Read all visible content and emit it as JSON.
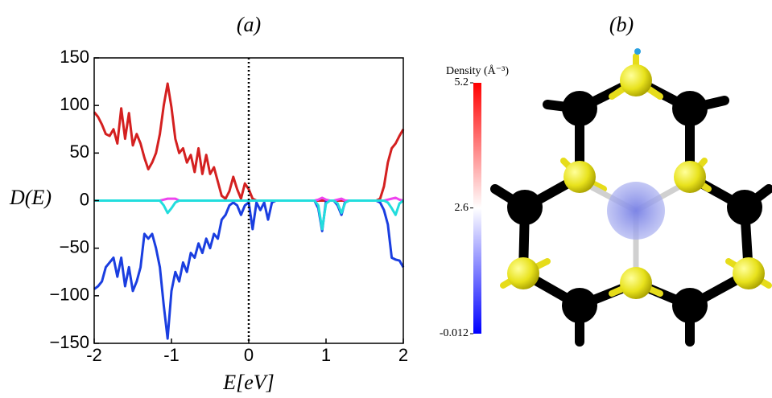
{
  "chart_data": {
    "type": "line",
    "title": "(a)",
    "ylabel": "D(E)",
    "xlabel": "E[eV]",
    "xlim": [
      -2,
      2
    ],
    "ylim": [
      -150,
      150
    ],
    "xticks": [
      -2,
      -1,
      0,
      1,
      2
    ],
    "yticks": [
      -150,
      -100,
      -50,
      0,
      50,
      100,
      150
    ],
    "vline": 0,
    "x": [
      -2,
      -1.95,
      -1.9,
      -1.85,
      -1.8,
      -1.75,
      -1.7,
      -1.65,
      -1.6,
      -1.55,
      -1.5,
      -1.45,
      -1.4,
      -1.35,
      -1.3,
      -1.25,
      -1.2,
      -1.15,
      -1.1,
      -1.05,
      -1,
      -0.95,
      -0.9,
      -0.85,
      -0.8,
      -0.75,
      -0.7,
      -0.65,
      -0.6,
      -0.55,
      -0.5,
      -0.45,
      -0.4,
      -0.35,
      -0.3,
      -0.25,
      -0.2,
      -0.15,
      -0.1,
      -0.05,
      0,
      0.05,
      0.1,
      0.15,
      0.2,
      0.25,
      0.3,
      0.35,
      0.4,
      0.45,
      0.5,
      0.55,
      0.6,
      0.65,
      0.7,
      0.75,
      0.8,
      0.85,
      0.9,
      0.95,
      1,
      1.05,
      1.1,
      1.15,
      1.2,
      1.25,
      1.3,
      1.35,
      1.4,
      1.45,
      1.5,
      1.55,
      1.6,
      1.65,
      1.7,
      1.75,
      1.8,
      1.85,
      1.9,
      1.95,
      2
    ],
    "series": [
      {
        "color": "#d42020",
        "values": [
          93,
          88,
          80,
          70,
          68,
          75,
          60,
          97,
          65,
          92,
          58,
          70,
          60,
          45,
          33,
          40,
          50,
          70,
          100,
          123,
          98,
          65,
          50,
          55,
          40,
          48,
          30,
          55,
          28,
          48,
          28,
          35,
          20,
          5,
          2,
          10,
          25,
          12,
          2,
          18,
          12,
          2,
          0,
          0,
          0,
          0,
          0,
          0,
          0,
          0,
          0,
          0,
          0,
          0,
          0,
          0,
          0,
          0,
          0,
          0,
          0,
          0,
          0,
          0,
          0,
          0,
          0,
          0,
          0,
          0,
          0,
          0,
          0,
          0,
          2,
          15,
          40,
          55,
          60,
          68,
          75
        ]
      },
      {
        "color": "#1a3ee0",
        "values": [
          -93,
          -90,
          -85,
          -70,
          -65,
          -60,
          -80,
          -60,
          -90,
          -70,
          -95,
          -85,
          -70,
          -35,
          -40,
          -35,
          -50,
          -70,
          -110,
          -145,
          -95,
          -75,
          -85,
          -65,
          -75,
          -55,
          -60,
          -45,
          -55,
          -40,
          -50,
          -35,
          -40,
          -20,
          -15,
          -5,
          -2,
          -5,
          -15,
          -5,
          -2,
          -30,
          -2,
          -10,
          -2,
          -20,
          -2,
          0,
          0,
          0,
          0,
          0,
          0,
          0,
          0,
          0,
          0,
          0,
          -8,
          -32,
          0,
          0,
          0,
          -5,
          -15,
          0,
          0,
          0,
          0,
          0,
          0,
          0,
          0,
          0,
          -2,
          -10,
          -25,
          -60,
          -62,
          -63,
          -70
        ]
      },
      {
        "color": "#ee44ee",
        "values": [
          0,
          0,
          0,
          0,
          0,
          0,
          0,
          0,
          0,
          0,
          0,
          0,
          0,
          0,
          0,
          0,
          0,
          0,
          1,
          2,
          2,
          2,
          0,
          0,
          0,
          0,
          0,
          0,
          0,
          0,
          0,
          0,
          0,
          0,
          0,
          0,
          0,
          0,
          0,
          0,
          0,
          0,
          0,
          0,
          0,
          0,
          0,
          0,
          0,
          0,
          0,
          0,
          0,
          0,
          0,
          0,
          0,
          0,
          1,
          3,
          1,
          0,
          0,
          1,
          2,
          0,
          0,
          0,
          0,
          0,
          0,
          0,
          0,
          0,
          0,
          0,
          1,
          2,
          3,
          1,
          0
        ]
      },
      {
        "color": "#22dddd",
        "values": [
          0,
          0,
          0,
          0,
          0,
          0,
          0,
          0,
          0,
          0,
          0,
          0,
          0,
          0,
          0,
          0,
          0,
          0,
          -5,
          -13,
          -8,
          -2,
          0,
          0,
          0,
          0,
          0,
          0,
          0,
          0,
          0,
          0,
          0,
          0,
          0,
          0,
          0,
          0,
          0,
          0,
          0,
          0,
          0,
          0,
          0,
          0,
          0,
          0,
          0,
          0,
          0,
          0,
          0,
          0,
          0,
          0,
          0,
          0,
          -5,
          -30,
          -3,
          0,
          0,
          -3,
          -13,
          -2,
          0,
          0,
          0,
          0,
          0,
          0,
          0,
          0,
          0,
          0,
          -2,
          -8,
          -15,
          -3,
          0
        ]
      }
    ]
  },
  "structure_panel": {
    "title": "(b)",
    "colorbar": {
      "label": "Density (Å⁻³)",
      "lim": [
        -0.012,
        5.2
      ],
      "ticks": [
        5.2,
        2.6,
        -0.012
      ]
    }
  }
}
